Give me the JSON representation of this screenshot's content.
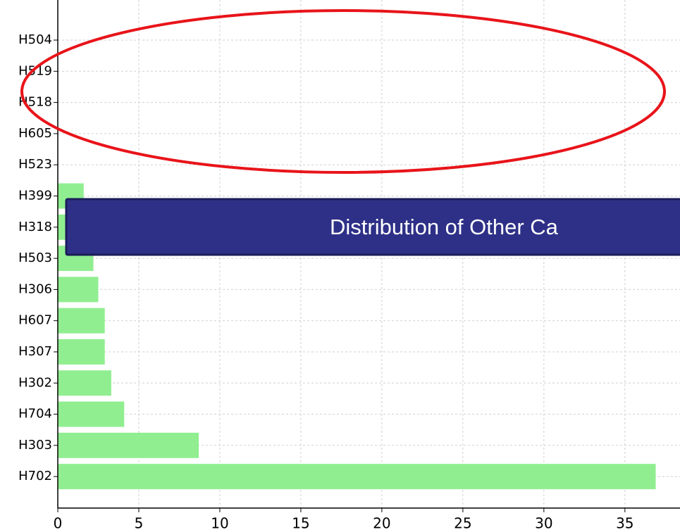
{
  "chart_data": {
    "type": "barh",
    "categories": [
      "H504",
      "H519",
      "H518",
      "H605",
      "H523",
      "H399",
      "H318",
      "H503",
      "H306",
      "H607",
      "H307",
      "H302",
      "H704",
      "H303",
      "H702"
    ],
    "values": [
      0,
      0,
      0,
      0,
      0,
      1.6,
      2.0,
      2.2,
      2.5,
      2.9,
      2.9,
      3.3,
      4.1,
      8.7,
      36.9
    ],
    "color": "#90ee90",
    "xlim": [
      0,
      38.4
    ],
    "xticks": [
      0,
      5,
      10,
      15,
      20,
      25,
      30,
      35
    ],
    "grid": true
  },
  "overlay": {
    "title": "Distribution of Other Ca"
  }
}
